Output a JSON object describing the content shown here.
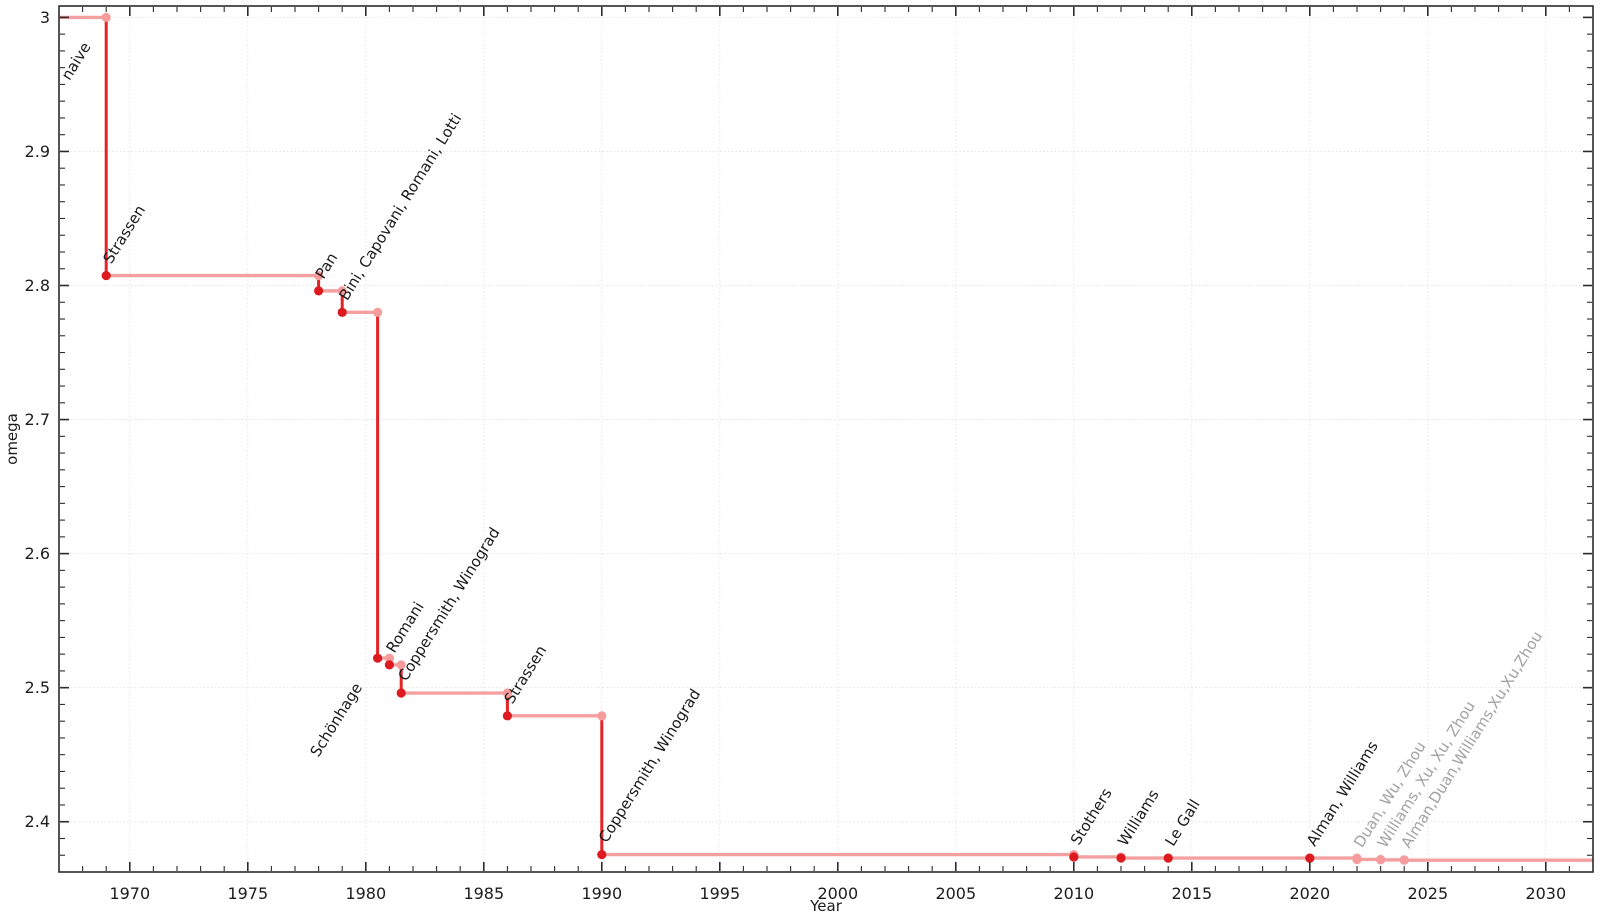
{
  "chart_data": {
    "type": "line",
    "step_style": "post",
    "title": "",
    "xlabel": "Year",
    "ylabel": "omega",
    "xlim": [
      1967,
      2032
    ],
    "ylim": [
      2.3625,
      3.0085
    ],
    "grid": true,
    "x_major_ticks": [
      1970,
      1975,
      1980,
      1985,
      1990,
      1995,
      2000,
      2005,
      2010,
      2015,
      2020,
      2025,
      2030
    ],
    "x_tick_labels": [
      "1970",
      "1975",
      "1980",
      "1985",
      "1990",
      "1995",
      "2000",
      "2005",
      "2010",
      "2015",
      "2020",
      "2025",
      "2030"
    ],
    "x_minor_step": 1,
    "y_major_ticks": [
      2.4,
      2.5,
      2.6,
      2.7,
      2.8,
      2.9,
      3.0
    ],
    "y_tick_labels": [
      "2.4",
      "2.5",
      "2.6",
      "2.7",
      "2.8",
      "2.9",
      "3"
    ],
    "y_minor_step": 0.0125,
    "origin_label": {
      "text": "naive",
      "x": 1969,
      "y": 3.0
    },
    "events": [
      {
        "x": 1969,
        "from": 3.0,
        "to": 2.8074,
        "label": "Strassen"
      },
      {
        "x": 1978,
        "from": 2.8074,
        "to": 2.796,
        "label": "Pan"
      },
      {
        "x": 1979,
        "from": 2.796,
        "to": 2.78,
        "label": "Bini, Capovani, Romani, Lotti"
      },
      {
        "x": 1980.5,
        "from": 2.78,
        "to": 2.522,
        "label": "Schönhage",
        "label_anchor": "end"
      },
      {
        "x": 1981,
        "from": 2.522,
        "to": 2.517,
        "label": "Romani"
      },
      {
        "x": 1981.5,
        "from": 2.517,
        "to": 2.496,
        "label": "Coppersmith, Winograd"
      },
      {
        "x": 1986,
        "from": 2.496,
        "to": 2.479,
        "label": "Strassen"
      },
      {
        "x": 1990,
        "from": 2.479,
        "to": 2.3755,
        "label": "Coppersmith, Winograd"
      },
      {
        "x": 2010,
        "from": 2.3755,
        "to": 2.3737,
        "label": "Stothers"
      },
      {
        "x": 2012,
        "from": 2.3737,
        "to": 2.3729,
        "label": "Williams"
      },
      {
        "x": 2014,
        "from": 2.3729,
        "to": 2.3728639,
        "label": "Le Gall"
      },
      {
        "x": 2020,
        "from": 2.3728639,
        "to": 2.3728596,
        "label": "Alman, Williams"
      },
      {
        "x": 2022,
        "from": 2.3728596,
        "to": 2.371866,
        "label": "Duan, Wu, Zhou",
        "muted": true
      },
      {
        "x": 2023,
        "from": 2.371866,
        "to": 2.371552,
        "label": "Williams, Xu, Xu, Zhou",
        "muted": true
      },
      {
        "x": 2024,
        "from": 2.371552,
        "to": 2.371339,
        "label": "Alman,Duan,Williams,Xu,Xu,Zhou",
        "muted": true
      }
    ],
    "colors": {
      "line_horizontal": "#f5a0a0",
      "line_vertical": "#e42329",
      "dot_dark": "#dc1a1f",
      "dot_light": "#f69c9c",
      "label": "#1a1a1a",
      "label_muted": "#a2a2a2",
      "grid": "#e3e3e3",
      "frame": "#2b2b2b"
    }
  }
}
